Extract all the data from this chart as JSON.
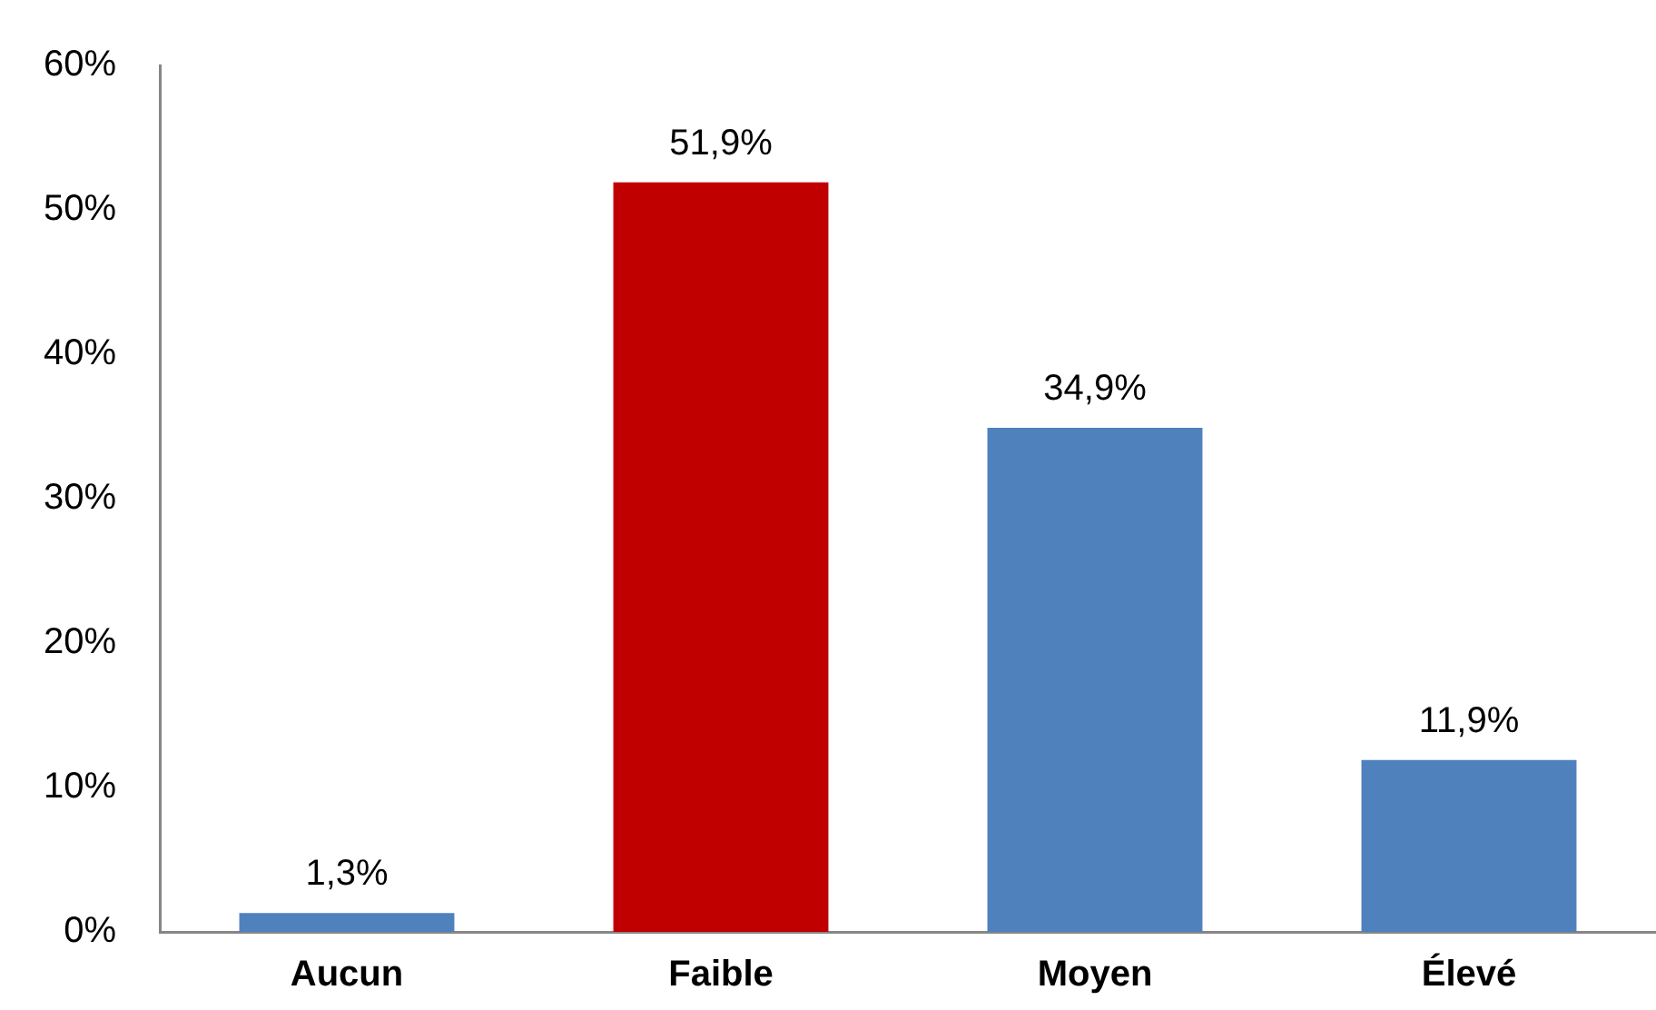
{
  "chart_data": {
    "type": "bar",
    "categories": [
      "Aucun",
      "Faible",
      "Moyen",
      "Élevé"
    ],
    "values": [
      1.3,
      51.9,
      34.9,
      11.9
    ],
    "colors": [
      "#4f81bd",
      "#c00000",
      "#4f81bd",
      "#4f81bd"
    ],
    "value_labels": [
      "1,3%",
      "51,9%",
      "34,9%",
      "11,9%"
    ],
    "ylim": [
      0,
      60
    ],
    "yticks": [
      {
        "value": 0,
        "label": "0%"
      },
      {
        "value": 10,
        "label": "10%"
      },
      {
        "value": 20,
        "label": "20%"
      },
      {
        "value": 30,
        "label": "30%"
      },
      {
        "value": 40,
        "label": "40%"
      },
      {
        "value": 50,
        "label": "50%"
      },
      {
        "value": 60,
        "label": "60%"
      }
    ],
    "grid": false,
    "legend": false
  }
}
